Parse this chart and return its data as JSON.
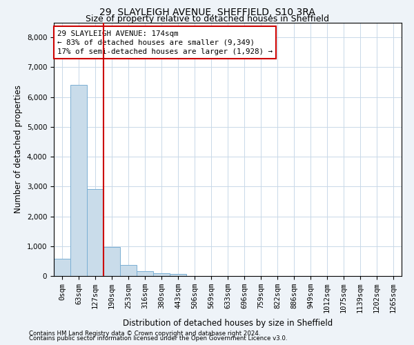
{
  "title": "29, SLAYLEIGH AVENUE, SHEFFIELD, S10 3RA",
  "subtitle": "Size of property relative to detached houses in Sheffield",
  "xlabel": "Distribution of detached houses by size in Sheffield",
  "ylabel": "Number of detached properties",
  "footnote1": "Contains HM Land Registry data © Crown copyright and database right 2024.",
  "footnote2": "Contains public sector information licensed under the Open Government Licence v3.0.",
  "bar_labels": [
    "0sqm",
    "63sqm",
    "127sqm",
    "190sqm",
    "253sqm",
    "316sqm",
    "380sqm",
    "443sqm",
    "506sqm",
    "569sqm",
    "633sqm",
    "696sqm",
    "759sqm",
    "822sqm",
    "886sqm",
    "949sqm",
    "1012sqm",
    "1075sqm",
    "1139sqm",
    "1202sqm",
    "1265sqm"
  ],
  "bar_values": [
    580,
    6400,
    2920,
    980,
    360,
    160,
    100,
    60,
    0,
    0,
    0,
    0,
    0,
    0,
    0,
    0,
    0,
    0,
    0,
    0,
    0
  ],
  "bar_color": "#c9dcea",
  "bar_edge_color": "#7aafd4",
  "vline_x": 3.0,
  "vline_color": "#cc0000",
  "annotation_line1": "29 SLAYLEIGH AVENUE: 174sqm",
  "annotation_line2": "← 83% of detached houses are smaller (9,349)",
  "annotation_line3": "17% of semi-detached houses are larger (1,928) →",
  "annotation_box_color": "#cc0000",
  "ylim": [
    0,
    8500
  ],
  "yticks": [
    0,
    1000,
    2000,
    3000,
    4000,
    5000,
    6000,
    7000,
    8000
  ],
  "bg_color": "#eef3f8",
  "plot_bg_color": "#ffffff",
  "grid_color": "#c8d8e8",
  "title_fontsize": 10,
  "subtitle_fontsize": 9,
  "axis_label_fontsize": 8.5,
  "tick_fontsize": 7.5,
  "annotation_fontsize": 7.8
}
